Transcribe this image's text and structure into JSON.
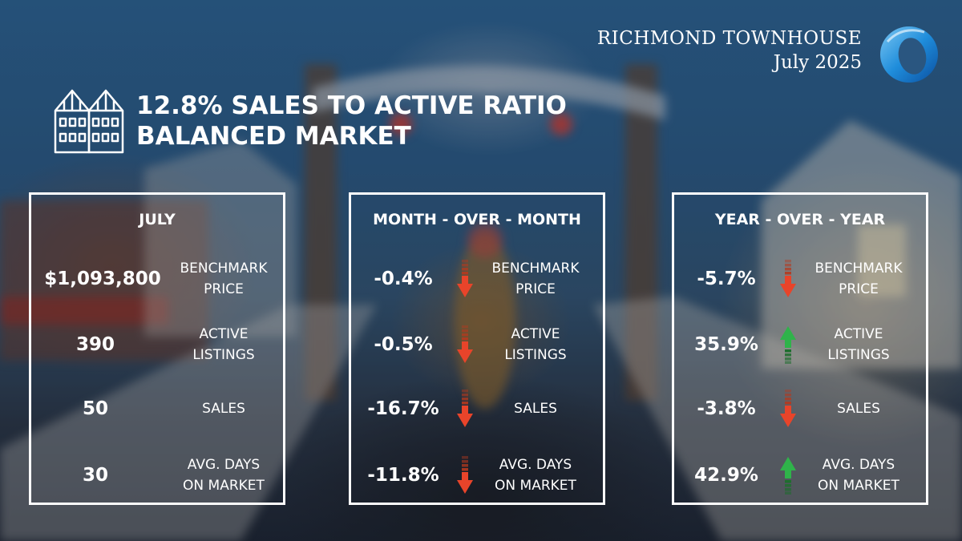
{
  "brand": {
    "title": "RICHMOND TOWNHOUSE",
    "date": "July 2025"
  },
  "headline": {
    "line1": "12.8% SALES TO ACTIVE RATIO",
    "line2": "BALANCED MARKET"
  },
  "colors": {
    "down": "#e8442a",
    "down_dark": "#b5391e",
    "up": "#2fb34a",
    "up_dark": "#1e6e2e",
    "border": "#ffffff",
    "logo": "#1e8fd8"
  },
  "panels": [
    {
      "title": "JULY",
      "rows": [
        {
          "value": "$1,093,800",
          "label1": "BENCHMARK",
          "label2": "PRICE"
        },
        {
          "value": "390",
          "label1": "ACTIVE",
          "label2": "LISTINGS"
        },
        {
          "value": "50",
          "label1": "SALES",
          "label2": ""
        },
        {
          "value": "30",
          "label1": "AVG. DAYS",
          "label2": "ON MARKET"
        }
      ]
    },
    {
      "title": "MONTH - OVER - MONTH",
      "rows": [
        {
          "value": "-0.4%",
          "direction": "down",
          "label1": "BENCHMARK",
          "label2": "PRICE"
        },
        {
          "value": "-0.5%",
          "direction": "down",
          "label1": "ACTIVE",
          "label2": "LISTINGS"
        },
        {
          "value": "-16.7%",
          "direction": "down",
          "label1": "SALES",
          "label2": ""
        },
        {
          "value": "-11.8%",
          "direction": "down",
          "label1": "AVG. DAYS",
          "label2": "ON MARKET"
        }
      ]
    },
    {
      "title": "YEAR - OVER - YEAR",
      "rows": [
        {
          "value": "-5.7%",
          "direction": "down",
          "label1": "BENCHMARK",
          "label2": "PRICE"
        },
        {
          "value": "35.9%",
          "direction": "up",
          "label1": "ACTIVE",
          "label2": "LISTINGS"
        },
        {
          "value": "-3.8%",
          "direction": "down",
          "label1": "SALES",
          "label2": ""
        },
        {
          "value": "42.9%",
          "direction": "up",
          "label1": "AVG. DAYS",
          "label2": "ON MARKET"
        }
      ]
    }
  ]
}
